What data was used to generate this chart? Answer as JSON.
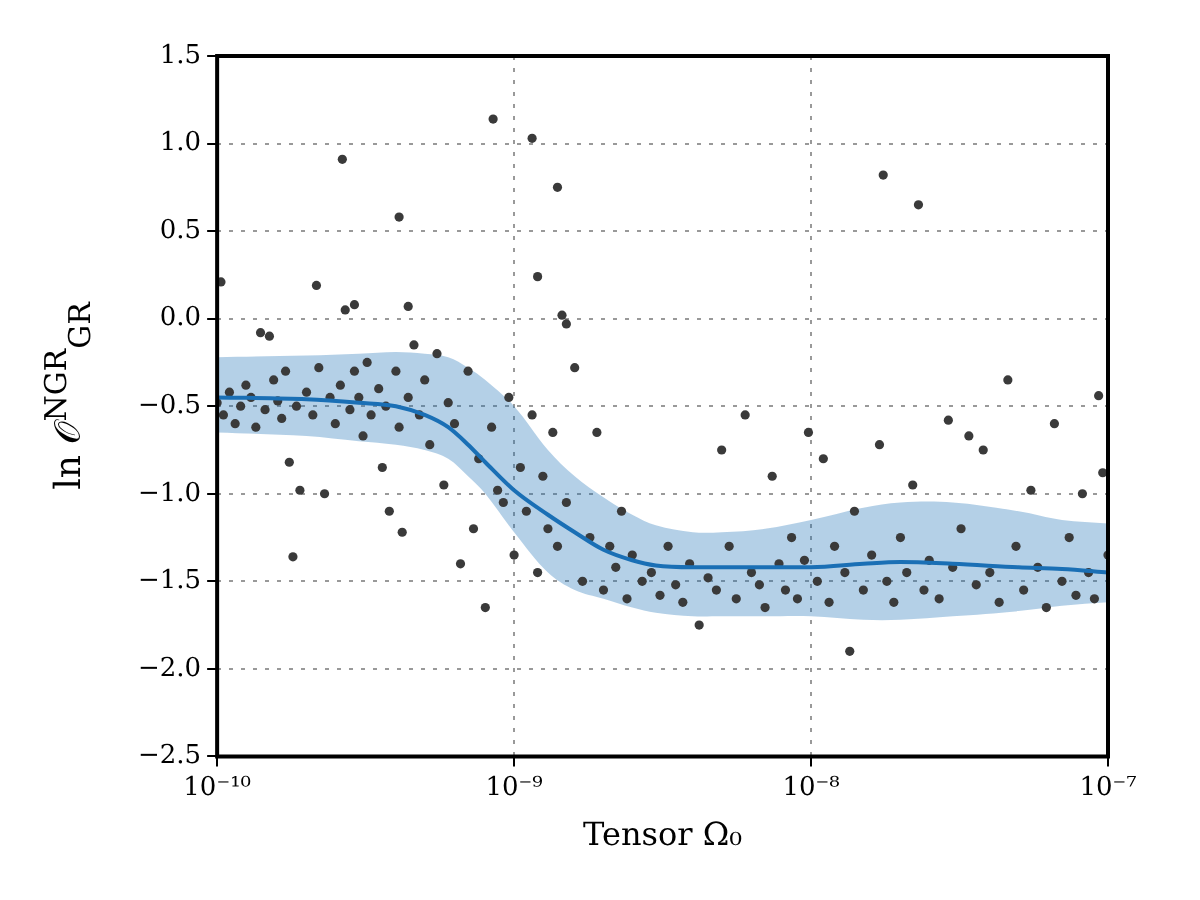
{
  "chart_data": {
    "type": "scatter",
    "xlabel": "Tensor Ω₀",
    "ylabel": "ln 𝒪$^{NGR}$$_{GR}$",
    "log": "x",
    "grid": true,
    "legend": false,
    "xlim": [
      1e-10,
      1e-07
    ],
    "xticks": [
      {
        "value": 1e-10,
        "label": "10⁻¹⁰"
      },
      {
        "value": 1e-09,
        "label": "10⁻⁹"
      },
      {
        "value": 1e-08,
        "label": "10⁻⁸"
      },
      {
        "value": 1e-07,
        "label": "10⁻⁷"
      }
    ],
    "ylim": [
      -2.5,
      1.5
    ],
    "yticks": [
      {
        "value": -2.5,
        "label": "−2.5"
      },
      {
        "value": -2,
        "label": "−2.0"
      },
      {
        "value": -1.5,
        "label": "−1.5"
      },
      {
        "value": -1,
        "label": "−1.0"
      },
      {
        "value": -0.5,
        "label": "−0.5"
      },
      {
        "value": 0,
        "label": "0.0"
      },
      {
        "value": 0.5,
        "label": "0.5"
      },
      {
        "value": 1,
        "label": "1.0"
      },
      {
        "value": 1.5,
        "label": "1.5"
      }
    ],
    "series": [
      {
        "color": "#3a3a3a",
        "marker": "circle",
        "x": [
          1e-10,
          1.05e-10,
          1.1e-10,
          1.15e-10,
          1.2e-10,
          1.25e-10,
          1.3e-10,
          1.35e-10,
          1.4e-10,
          1.45e-10,
          1.5e-10,
          1.55e-10,
          1.6e-10,
          1.65e-10,
          1.7e-10,
          1.75e-10,
          1.8e-10,
          1.85e-10,
          1.9e-10,
          2e-10,
          2.1e-10,
          2.2e-10,
          2.3e-10,
          2.4e-10,
          2.5e-10,
          2.6e-10,
          2.7e-10,
          2.8e-10,
          2.9e-10,
          3e-10,
          3.1e-10,
          3.2e-10,
          3.3e-10,
          3.5e-10,
          3.6e-10,
          3.7e-10,
          3.8e-10,
          4e-10,
          4.1e-10,
          4.2e-10,
          4.4e-10,
          4.6e-10,
          4.8e-10,
          5e-10,
          5.2e-10,
          5.5e-10,
          5.8e-10,
          6e-10,
          6.3e-10,
          6.6e-10,
          7e-10,
          7.3e-10,
          7.6e-10,
          8e-10,
          8.4e-10,
          8.8e-10,
          9.2e-10,
          9.6e-10,
          1e-09,
          1.03e-10,
          2.16e-10,
          2.64e-10,
          2.9e-10,
          4.1e-10,
          4.4e-10,
          8.5e-10,
          1.15e-09,
          1.2e-09,
          1.4e-09,
          1.45e-09,
          1.5e-09,
          1.05e-09,
          1.1e-09,
          1.15e-09,
          1.2e-09,
          1.25e-09,
          1.3e-09,
          1.35e-09,
          1.4e-09,
          1.5e-09,
          1.6e-09,
          1.7e-09,
          1.8e-09,
          1.9e-09,
          2e-09,
          2.1e-09,
          2.2e-09,
          2.3e-09,
          2.4e-09,
          2.5e-09,
          2.7e-09,
          2.9e-09,
          3.1e-09,
          3.3e-09,
          3.5e-09,
          3.7e-09,
          3.9e-09,
          4.2e-09,
          4.5e-09,
          4.8e-09,
          5e-09,
          5.3e-09,
          5.6e-09,
          6e-09,
          6.3e-09,
          6.7e-09,
          7e-09,
          7.4e-09,
          7.8e-09,
          8.2e-09,
          8.6e-09,
          9e-09,
          9.5e-09,
          9.8e-09,
          1.05e-08,
          1.1e-08,
          1.15e-08,
          1.2e-08,
          1.3e-08,
          1.35e-08,
          1.4e-08,
          1.5e-08,
          1.6e-08,
          1.7e-08,
          1.75e-08,
          1.8e-08,
          1.9e-08,
          2e-08,
          2.1e-08,
          2.2e-08,
          2.3e-08,
          2.4e-08,
          2.5e-08,
          2.7e-08,
          2.9e-08,
          3e-08,
          3.2e-08,
          3.4e-08,
          3.6e-08,
          3.8e-08,
          4e-08,
          4.3e-08,
          4.6e-08,
          4.9e-08,
          5.2e-08,
          5.5e-08,
          5.8e-08,
          6.2e-08,
          6.6e-08,
          7e-08,
          7.4e-08,
          7.8e-08,
          8.2e-08,
          8.6e-08,
          9e-08,
          9.3e-08,
          9.6e-08,
          1e-07
        ],
        "values": [
          -0.48,
          -0.55,
          -0.42,
          -0.6,
          -0.5,
          -0.38,
          -0.45,
          -0.62,
          -0.08,
          -0.52,
          -0.1,
          -0.35,
          -0.47,
          -0.57,
          -0.3,
          -0.82,
          -1.36,
          -0.5,
          -0.98,
          -0.42,
          -0.55,
          -0.28,
          -1.0,
          -0.45,
          -0.6,
          -0.38,
          0.05,
          -0.52,
          -0.3,
          -0.45,
          -0.67,
          -0.25,
          -0.55,
          -0.4,
          -0.85,
          -0.5,
          -1.1,
          -0.3,
          -0.62,
          -1.22,
          -0.45,
          -0.15,
          -0.55,
          -0.35,
          -0.72,
          -0.2,
          -0.95,
          -0.48,
          -0.6,
          -1.4,
          -0.3,
          -1.2,
          -0.8,
          -1.65,
          -0.62,
          -0.98,
          -1.05,
          -0.45,
          -1.35,
          0.21,
          0.19,
          0.91,
          0.08,
          0.58,
          0.07,
          1.14,
          1.03,
          0.24,
          0.75,
          0.02,
          -0.03,
          -0.85,
          -1.1,
          -0.55,
          -1.45,
          -0.9,
          -1.2,
          -0.65,
          -1.3,
          -1.05,
          -0.28,
          -1.5,
          -1.25,
          -0.65,
          -1.55,
          -1.3,
          -1.42,
          -1.1,
          -1.6,
          -1.35,
          -1.5,
          -1.45,
          -1.58,
          -1.3,
          -1.52,
          -1.62,
          -1.4,
          -1.75,
          -1.48,
          -1.55,
          -0.75,
          -1.3,
          -1.6,
          -0.55,
          -1.45,
          -1.52,
          -1.65,
          -0.9,
          -1.4,
          -1.55,
          -1.25,
          -1.6,
          -1.38,
          -0.65,
          -1.5,
          -0.8,
          -1.62,
          -1.3,
          -1.45,
          -1.9,
          -1.1,
          -1.55,
          -1.35,
          -0.72,
          0.82,
          -1.5,
          -1.62,
          -1.25,
          -1.45,
          -0.95,
          0.65,
          -1.55,
          -1.38,
          -1.6,
          -0.58,
          -1.42,
          -1.2,
          -0.67,
          -1.52,
          -0.75,
          -1.45,
          -1.62,
          -0.35,
          -1.3,
          -1.55,
          -0.98,
          -1.42,
          -1.65,
          -0.6,
          -1.5,
          -1.25,
          -1.58,
          -1.0,
          -1.45,
          -1.6,
          -0.44,
          -0.88,
          -1.35
        ]
      },
      {
        "type": "line",
        "color": "#1a6fb5",
        "marker": "none",
        "line_style": "solid",
        "x": [
          1e-10,
          2e-10,
          3e-10,
          4e-10,
          5e-10,
          6e-10,
          7e-10,
          8e-10,
          1e-09,
          1.3e-09,
          1.6e-09,
          2e-09,
          2.5e-09,
          3e-09,
          4e-09,
          5e-09,
          7e-09,
          1e-08,
          1.5e-08,
          2e-08,
          3e-08,
          5e-08,
          7e-08,
          1e-07
        ],
        "values": [
          -0.45,
          -0.46,
          -0.48,
          -0.5,
          -0.55,
          -0.62,
          -0.72,
          -0.82,
          -0.98,
          -1.12,
          -1.22,
          -1.32,
          -1.38,
          -1.41,
          -1.42,
          -1.42,
          -1.42,
          -1.42,
          -1.4,
          -1.39,
          -1.4,
          -1.42,
          -1.43,
          -1.45
        ],
        "upper": [
          -0.22,
          -0.21,
          -0.2,
          -0.19,
          -0.2,
          -0.22,
          -0.28,
          -0.35,
          -0.5,
          -0.75,
          -0.9,
          -1.02,
          -1.12,
          -1.18,
          -1.22,
          -1.22,
          -1.2,
          -1.15,
          -1.08,
          -1.05,
          -1.05,
          -1.1,
          -1.15,
          -1.17
        ],
        "lower": [
          -0.65,
          -0.67,
          -0.7,
          -0.72,
          -0.75,
          -0.8,
          -0.9,
          -1.0,
          -1.22,
          -1.45,
          -1.55,
          -1.6,
          -1.65,
          -1.68,
          -1.7,
          -1.7,
          -1.7,
          -1.7,
          -1.72,
          -1.72,
          -1.7,
          -1.67,
          -1.64,
          -1.62
        ]
      }
    ]
  }
}
